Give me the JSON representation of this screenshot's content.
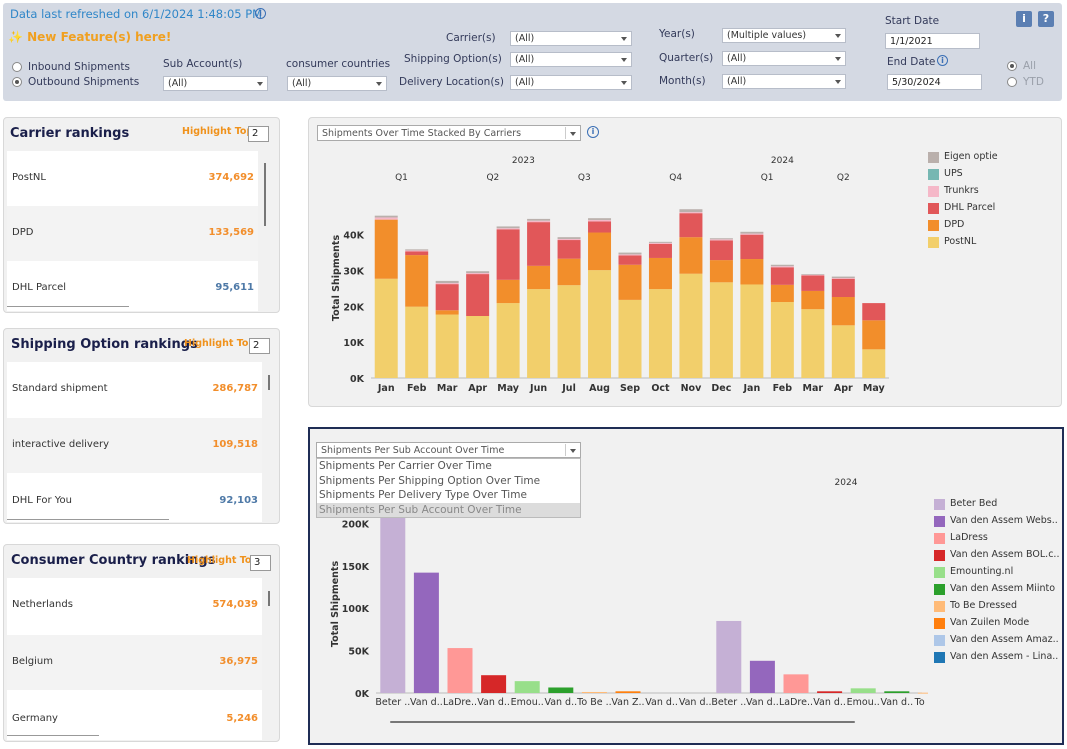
{
  "header": {
    "refresh_text": "Data last refreshed on 6/1/2024 1:48:05 PM",
    "feature_text": "✨ New Feature(s) here!",
    "radio_inbound": "Inbound Shipments",
    "radio_outbound": "Outbound Shipments",
    "sub_account_label": "Sub Account(s)",
    "sub_account_value": "(All)",
    "consumer_countries_label": "consumer countries",
    "consumer_countries_value": "(All)",
    "carrier_label": "Carrier(s)",
    "carrier_value": "(All)",
    "shipping_option_label": "Shipping Option(s)",
    "shipping_option_value": "(All)",
    "delivery_location_label": "Delivery Location(s)",
    "delivery_location_value": "(All)",
    "year_label": "Year(s)",
    "year_value": "(Multiple values)",
    "quarter_label": "Quarter(s)",
    "quarter_value": "(All)",
    "month_label": "Month(s)",
    "month_value": "(All)",
    "start_date_label": "Start Date",
    "start_date_value": "1/1/2021",
    "end_date_label": "End Date",
    "end_date_value": "5/30/2024",
    "radio_all": "All",
    "radio_ytd": "YTD",
    "info_button": "i",
    "help_button": "?"
  },
  "carrier_panel": {
    "title": "Carrier rankings",
    "highlight_label": "Highlight Top",
    "highlight_value": "2",
    "items": [
      {
        "name": "PostNL",
        "value": "374,692",
        "color": "#f28e2b"
      },
      {
        "name": "DPD",
        "value": "133,569",
        "color": "#f28e2b"
      },
      {
        "name": "DHL Parcel",
        "value": "95,611",
        "color": "#4e79a7"
      }
    ]
  },
  "shipping_panel": {
    "title": "Shipping Option  rankings",
    "highlight_label": "Highlight Top",
    "highlight_value": "2",
    "items": [
      {
        "name": "Standard shipment",
        "value": "286,787",
        "color": "#f28e2b"
      },
      {
        "name": "interactive delivery",
        "value": "109,518",
        "color": "#f28e2b"
      },
      {
        "name": "DHL For You",
        "value": "92,103",
        "color": "#4e79a7"
      }
    ]
  },
  "country_panel": {
    "title": "Consumer Country rankings",
    "highlight_label": "Highlight Top",
    "highlight_value": "3",
    "items": [
      {
        "name": "Netherlands",
        "value": "574,039",
        "color": "#f28e2b"
      },
      {
        "name": "Belgium",
        "value": "36,975",
        "color": "#f28e2b"
      },
      {
        "name": "Germany",
        "value": "5,246",
        "color": "#f28e2b"
      }
    ]
  },
  "top_chart_dropdown": "Shipments Over Time Stacked By Carriers",
  "bottom_chart_dropdown": "Shipments Per Sub Account Over Time",
  "bottom_dropdown_options": [
    "Shipments Per Carrier Over Time",
    "Shipments Per Shipping Option Over Time",
    "Shipments Per Delivery Type Over Time",
    "Shipments Per Sub Account Over Time"
  ],
  "chart_data": [
    {
      "type": "bar",
      "stacked": true,
      "ylabel": "Total Shipments",
      "ylim": [
        0,
        48000
      ],
      "yticks": [
        "0K",
        "10K",
        "20K",
        "30K",
        "40K"
      ],
      "year_labels": [
        {
          "label": "2023",
          "at": 5
        },
        {
          "label": "2024",
          "at": 13.5
        }
      ],
      "quarter_labels": [
        {
          "label": "Q1",
          "at": 1
        },
        {
          "label": "Q2",
          "at": 4
        },
        {
          "label": "Q3",
          "at": 7
        },
        {
          "label": "Q4",
          "at": 10
        },
        {
          "label": "Q1",
          "at": 13
        },
        {
          "label": "Q2",
          "at": 15.5
        }
      ],
      "categories": [
        "Jan",
        "Feb",
        "Mar",
        "Apr",
        "May",
        "Jun",
        "Jul",
        "Aug",
        "Sep",
        "Oct",
        "Nov",
        "Dec",
        "Jan",
        "Feb",
        "Mar",
        "Apr",
        "May"
      ],
      "series": [
        {
          "name": "PostNL",
          "color": "#f2cf6b",
          "values": [
            27700,
            19900,
            17700,
            17300,
            20900,
            24800,
            25900,
            30100,
            21800,
            24800,
            29100,
            26700,
            26100,
            21200,
            19200,
            14700,
            8000
          ]
        },
        {
          "name": "DPD",
          "color": "#f28e2b",
          "values": [
            16500,
            14400,
            1200,
            0,
            6500,
            6500,
            7400,
            10500,
            9800,
            8700,
            10200,
            6200,
            7100,
            4800,
            5100,
            7900,
            8100
          ]
        },
        {
          "name": "DHL Parcel",
          "color": "#e15759",
          "values": [
            0,
            1000,
            7300,
            11700,
            14100,
            12200,
            5200,
            3100,
            2600,
            3900,
            6700,
            5500,
            6800,
            4900,
            4300,
            5100,
            4800
          ]
        },
        {
          "name": "Trunkrs",
          "color": "#f5b8c8",
          "values": [
            600,
            300,
            300,
            300,
            300,
            400,
            300,
            400,
            300,
            300,
            300,
            300,
            300,
            300,
            200,
            200,
            0
          ]
        },
        {
          "name": "UPS",
          "color": "#76b7b2",
          "values": [
            0,
            0,
            0,
            0,
            0,
            0,
            0,
            0,
            0,
            0,
            0,
            0,
            0,
            0,
            0,
            0,
            0
          ]
        },
        {
          "name": "Eigen optie",
          "color": "#bab0ac",
          "values": [
            500,
            300,
            600,
            500,
            500,
            500,
            500,
            500,
            500,
            300,
            800,
            300,
            500,
            400,
            200,
            400,
            0
          ]
        }
      ],
      "legend_order": [
        "Eigen optie",
        "UPS",
        "Trunkrs",
        "DHL Parcel",
        "DPD",
        "PostNL"
      ]
    },
    {
      "type": "bar",
      "ylabel": "Total Shipments",
      "ylim": [
        0,
        235000
      ],
      "yticks": [
        "0K",
        "50K",
        "100K",
        "150K",
        "200K"
      ],
      "year_label": "2024",
      "categories": [
        "Beter ..",
        "Van d..",
        "LaDre..",
        "Van d..",
        "Emou..",
        "Van d..",
        "To Be ..",
        "Van Z..",
        "Van d..",
        "Van d..",
        "Beter ..",
        "Van d..",
        "LaDre..",
        "Van d..",
        "Emou..",
        "Van d..",
        "To Be.."
      ],
      "values": [
        235000,
        142000,
        53000,
        21000,
        14000,
        6500,
        1200,
        2000,
        0,
        0,
        85000,
        38000,
        22000,
        2000,
        5500,
        2000,
        400
      ],
      "colors": [
        "#c5b0d5",
        "#9467bd",
        "#ff9896",
        "#d62728",
        "#98df8a",
        "#2ca02c",
        "#ffbb78",
        "#ff7f0e",
        "#aec7e8",
        "#1f77b4",
        "#c5b0d5",
        "#9467bd",
        "#ff9896",
        "#d62728",
        "#98df8a",
        "#2ca02c",
        "#ffbb78"
      ],
      "legend": [
        {
          "name": "Beter Bed",
          "color": "#c5b0d5"
        },
        {
          "name": "Van den Assem Webs..",
          "color": "#9467bd"
        },
        {
          "name": "LaDress",
          "color": "#ff9896"
        },
        {
          "name": "Van den Assem BOL.c..",
          "color": "#d62728"
        },
        {
          "name": "Emounting.nl",
          "color": "#98df8a"
        },
        {
          "name": "Van den Assem Miinto",
          "color": "#2ca02c"
        },
        {
          "name": "To Be Dressed",
          "color": "#ffbb78"
        },
        {
          "name": "Van Zuilen Mode",
          "color": "#ff7f0e"
        },
        {
          "name": "Van den Assem Amaz..",
          "color": "#aec7e8"
        },
        {
          "name": "Van den Assem - Lina..",
          "color": "#1f77b4"
        }
      ]
    }
  ]
}
